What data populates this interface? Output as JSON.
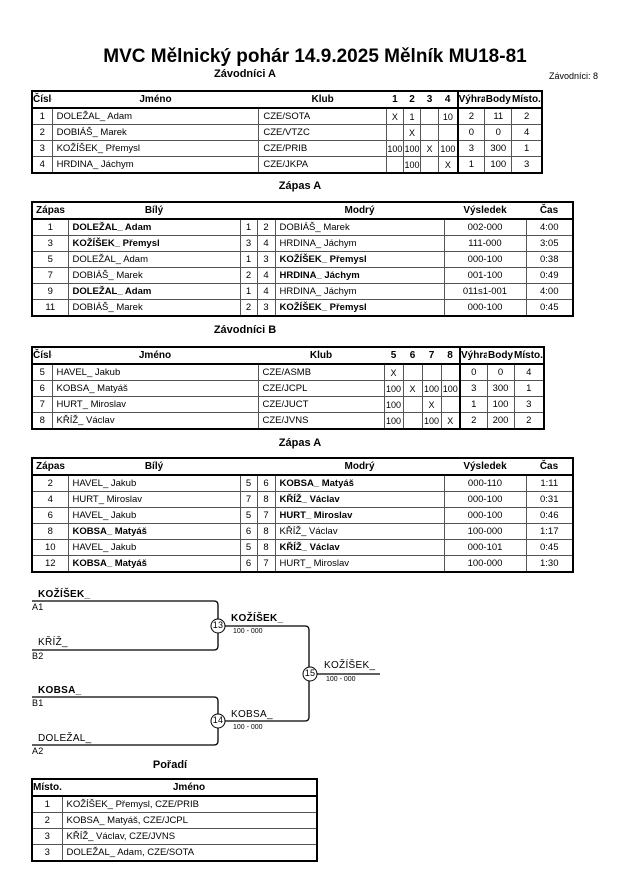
{
  "title": "MVC Mělnický pohár  14.9.2025  Mělník   MU18-81",
  "competitors_count": "Závodníci: 8",
  "pool_a": {
    "title": "Závodníci A",
    "headers": [
      "Číslo",
      "Jméno",
      "Klub",
      "1",
      "2",
      "3",
      "4",
      "Výhra",
      "Body",
      "Místo."
    ],
    "rows": [
      [
        "1",
        "DOLEŽAL_ Adam",
        "CZE/SOTA",
        "X",
        "1",
        "",
        "10",
        "2",
        "11",
        "2"
      ],
      [
        "2",
        "DOBIÁŠ_ Marek",
        "CZE/VTZC",
        "",
        "X",
        "",
        "",
        "0",
        "0",
        "4"
      ],
      [
        "3",
        "KOŽÍŠEK_ Přemysl",
        "CZE/PRIB",
        "100",
        "100",
        "X",
        "100",
        "3",
        "300",
        "1"
      ],
      [
        "4",
        "HRDINA_ Jáchym",
        "CZE/JKPA",
        "",
        "100",
        "",
        "X",
        "1",
        "100",
        "3"
      ]
    ]
  },
  "matches_a": {
    "title": "Zápas A",
    "headers": [
      "Zápas",
      "Bílý",
      "",
      "",
      "Modrý",
      "Výsledek",
      "Čas"
    ],
    "rows": [
      {
        "cells": [
          "1",
          "DOLEŽAL_ Adam",
          "1",
          "2",
          "DOBIÁŠ_ Marek",
          "002-000",
          "4:00"
        ],
        "winner": "white"
      },
      {
        "cells": [
          "3",
          "KOŽÍŠEK_ Přemysl",
          "3",
          "4",
          "HRDINA_ Jáchym",
          "111-000",
          "3:05"
        ],
        "winner": "white"
      },
      {
        "cells": [
          "5",
          "DOLEŽAL_ Adam",
          "1",
          "3",
          "KOŽÍŠEK_ Přemysl",
          "000-100",
          "0:38"
        ],
        "winner": "blue"
      },
      {
        "cells": [
          "7",
          "DOBIÁŠ_ Marek",
          "2",
          "4",
          "HRDINA_ Jáchym",
          "001-100",
          "0:49"
        ],
        "winner": "blue"
      },
      {
        "cells": [
          "9",
          "DOLEŽAL_ Adam",
          "1",
          "4",
          "HRDINA_ Jáchym",
          "011s1-001",
          "4:00"
        ],
        "winner": "white"
      },
      {
        "cells": [
          "11",
          "DOBIÁŠ_ Marek",
          "2",
          "3",
          "KOŽÍŠEK_ Přemysl",
          "000-100",
          "0:45"
        ],
        "winner": "blue"
      }
    ]
  },
  "pool_b": {
    "title": "Závodníci B",
    "headers": [
      "Číslo",
      "Jméno",
      "Klub",
      "5",
      "6",
      "7",
      "8",
      "Výhra",
      "Body",
      "Místo."
    ],
    "rows": [
      [
        "5",
        "HAVEL_ Jakub",
        "CZE/ASMB",
        "X",
        "",
        "",
        "",
        "0",
        "0",
        "4"
      ],
      [
        "6",
        "KOBSA_ Matyáš",
        "CZE/JCPL",
        "100",
        "X",
        "100",
        "100",
        "3",
        "300",
        "1"
      ],
      [
        "7",
        "HURT_ Miroslav",
        "CZE/JUCT",
        "100",
        "",
        "X",
        "",
        "1",
        "100",
        "3"
      ],
      [
        "8",
        "KŘÍŽ_ Václav",
        "CZE/JVNS",
        "100",
        "",
        "100",
        "X",
        "2",
        "200",
        "2"
      ]
    ]
  },
  "matches_b": {
    "title": "Zápas A",
    "headers": [
      "Zápas",
      "Bílý",
      "",
      "",
      "Modrý",
      "Výsledek",
      "Čas"
    ],
    "rows": [
      {
        "cells": [
          "2",
          "HAVEL_ Jakub",
          "5",
          "6",
          "KOBSA_ Matyáš",
          "000-110",
          "1:11"
        ],
        "winner": "blue"
      },
      {
        "cells": [
          "4",
          "HURT_ Miroslav",
          "7",
          "8",
          "KŘÍŽ_ Václav",
          "000-100",
          "0:31"
        ],
        "winner": "blue"
      },
      {
        "cells": [
          "6",
          "HAVEL_ Jakub",
          "5",
          "7",
          "HURT_ Miroslav",
          "000-100",
          "0:46"
        ],
        "winner": "blue"
      },
      {
        "cells": [
          "8",
          "KOBSA_ Matyáš",
          "6",
          "8",
          "KŘÍŽ_ Václav",
          "100-000",
          "1:17"
        ],
        "winner": "white"
      },
      {
        "cells": [
          "10",
          "HAVEL_ Jakub",
          "5",
          "8",
          "KŘÍŽ_ Václav",
          "000-101",
          "0:45"
        ],
        "winner": "blue"
      },
      {
        "cells": [
          "12",
          "KOBSA_ Matyáš",
          "6",
          "7",
          "HURT_ Miroslav",
          "100-000",
          "1:30"
        ],
        "winner": "white"
      }
    ]
  },
  "bracket": {
    "slots": [
      {
        "name": "KOŽÍŠEK_",
        "seed": "A1"
      },
      {
        "name": "KŘÍŽ_",
        "seed": "B2"
      },
      {
        "name": "KOBSA_",
        "seed": "B1"
      },
      {
        "name": "DOLEŽAL_",
        "seed": "A2"
      }
    ],
    "matches": [
      {
        "number": "13",
        "winner": "KOŽÍŠEK_",
        "score": "100 - 000"
      },
      {
        "number": "14",
        "winner": "KOBSA_",
        "score": "100 - 000"
      },
      {
        "number": "15",
        "winner": "KOŽÍŠEK_",
        "score": "100 - 000"
      }
    ]
  },
  "ranking": {
    "title": "Pořadí",
    "headers": [
      "Místo.",
      "Jméno"
    ],
    "rows": [
      [
        "1",
        "KOŽÍŠEK_ Přemysl, CZE/PRIB"
      ],
      [
        "2",
        "KOBSA_ Matyáš, CZE/JCPL"
      ],
      [
        "3",
        "KŘÍŽ_ Václav, CZE/JVNS"
      ],
      [
        "3",
        "DOLEŽAL_ Adam, CZE/SOTA"
      ]
    ]
  }
}
